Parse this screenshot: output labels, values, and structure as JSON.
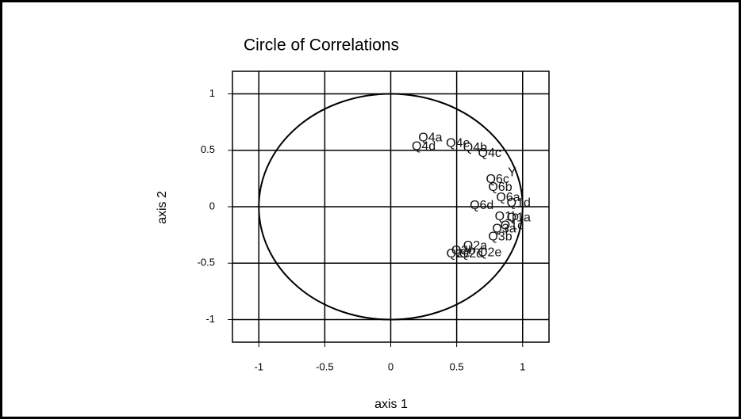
{
  "chart_data": {
    "type": "scatter",
    "title": "Circle of Correlations",
    "xlabel": "axis 1",
    "ylabel": "axis 2",
    "xlim": [
      -1.2,
      1.2
    ],
    "ylim": [
      -1.2,
      1.2
    ],
    "xticks": [
      -1,
      -0.5,
      0,
      0.5,
      1
    ],
    "yticks": [
      -1,
      -0.5,
      0,
      0.5,
      1
    ],
    "grid": true,
    "points": [
      {
        "label": "Q4a",
        "x": 0.3,
        "y": 0.61
      },
      {
        "label": "Q4d",
        "x": 0.25,
        "y": 0.53
      },
      {
        "label": "Q4e",
        "x": 0.51,
        "y": 0.56
      },
      {
        "label": "Q4b",
        "x": 0.64,
        "y": 0.52
      },
      {
        "label": "Q4c",
        "x": 0.75,
        "y": 0.47
      },
      {
        "label": "Y",
        "x": 0.92,
        "y": 0.3
      },
      {
        "label": "Q6c",
        "x": 0.81,
        "y": 0.24
      },
      {
        "label": "Q6b",
        "x": 0.83,
        "y": 0.17
      },
      {
        "label": "Q6a",
        "x": 0.89,
        "y": 0.08
      },
      {
        "label": "Q6d",
        "x": 0.69,
        "y": 0.01
      },
      {
        "label": "Q1d",
        "x": 0.97,
        "y": 0.03
      },
      {
        "label": "Q1a",
        "x": 0.97,
        "y": -0.1
      },
      {
        "label": "Q1b",
        "x": 0.88,
        "y": -0.09
      },
      {
        "label": "Q1c",
        "x": 0.92,
        "y": -0.17
      },
      {
        "label": "Q3a",
        "x": 0.86,
        "y": -0.2
      },
      {
        "label": "Q3b",
        "x": 0.83,
        "y": -0.27
      },
      {
        "label": "Q2a",
        "x": 0.64,
        "y": -0.35
      },
      {
        "label": "Q2b",
        "x": 0.55,
        "y": -0.39
      },
      {
        "label": "Q2c",
        "x": 0.51,
        "y": -0.42
      },
      {
        "label": "Q2d",
        "x": 0.61,
        "y": -0.42
      },
      {
        "label": "Q2e",
        "x": 0.75,
        "y": -0.41
      }
    ]
  }
}
